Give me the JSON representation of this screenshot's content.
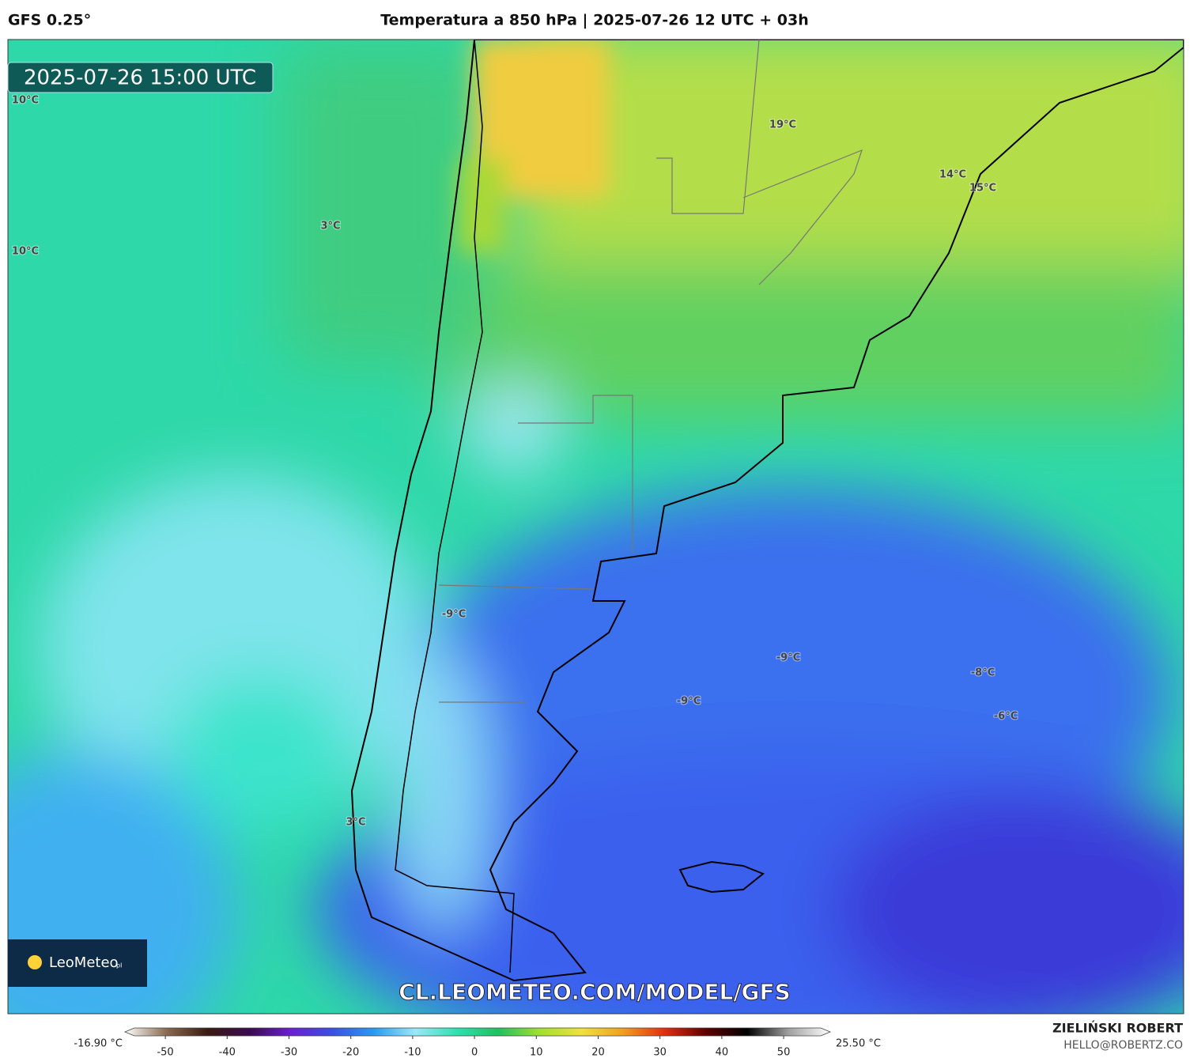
{
  "header": {
    "model": "GFS 0.25°",
    "title": "Temperatura a 850 hPa | 2025-07-26 12 UTC + 03h"
  },
  "timestamp": "2025-07-26 15:00 UTC",
  "labels": [
    "10°C",
    "10°C",
    "3°C",
    "19°C",
    "14°C",
    "15°C",
    "-9°C",
    "-9°C",
    "-9°C",
    "-8°C",
    "-6°C",
    "3°C"
  ],
  "watermark": "CL.LEOMETEO.COM/MODEL/GFS",
  "logo": {
    "name": "LeoMeteo",
    "suffix": "pl"
  },
  "colorbar": {
    "min_label": "-16.90 °C",
    "max_label": "25.50 °C",
    "lim": [
      -55,
      56
    ],
    "ticks": [
      -50,
      -40,
      -30,
      -20,
      -10,
      0,
      10,
      20,
      30,
      40,
      50
    ],
    "colors": [
      "#ffffff",
      "#8a6a50",
      "#3a1a10",
      "#3a0a50",
      "#6a20d0",
      "#3a50e0",
      "#2a9af0",
      "#9ae8f8",
      "#30e0b0",
      "#20c060",
      "#a0e030",
      "#f0e040",
      "#f0a020",
      "#e03010",
      "#600000",
      "#000000",
      "#a0a0a0",
      "#ffffff"
    ]
  },
  "credits": {
    "author": "ZIELIŃSKI ROBERT",
    "email": "HELLO@ROBERTZ.CO"
  }
}
